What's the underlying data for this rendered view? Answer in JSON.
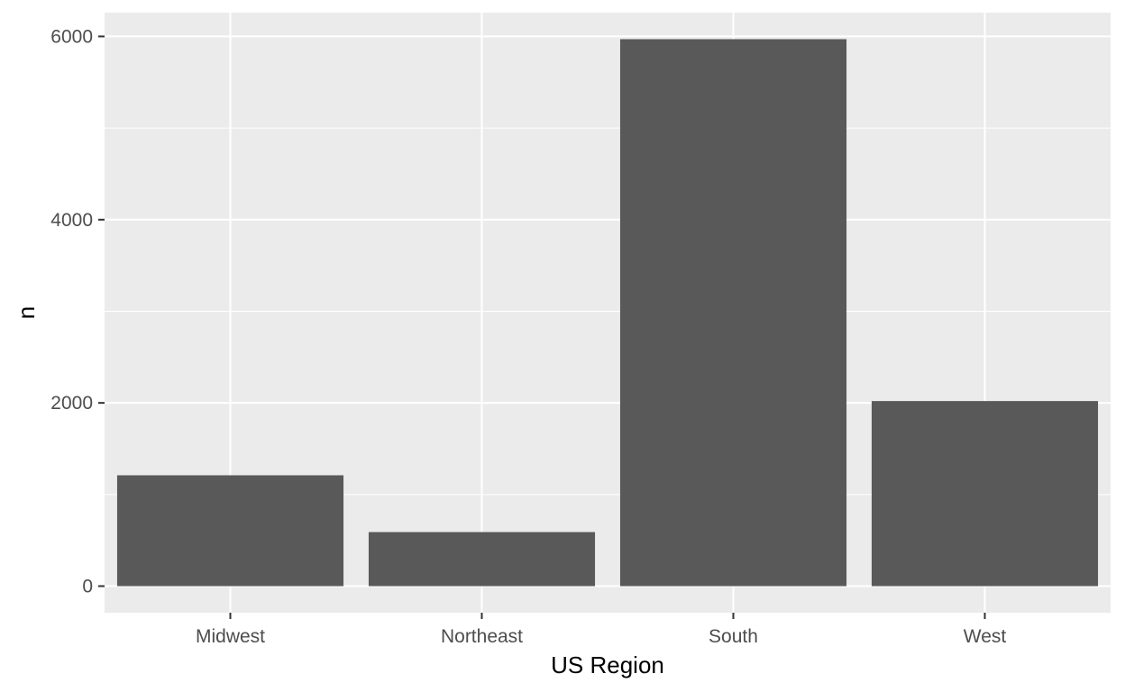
{
  "chart_data": {
    "type": "bar",
    "categories": [
      "Midwest",
      "Northeast",
      "South",
      "West"
    ],
    "values": [
      1210,
      590,
      5970,
      2020
    ],
    "xlabel": "US Region",
    "ylabel": "n",
    "ylim": [
      -290,
      6260
    ],
    "yticks": [
      0,
      2000,
      4000,
      6000
    ],
    "yticks_minor": [
      1000,
      3000,
      5000
    ],
    "grid": true,
    "legend": "none",
    "colors": {
      "panel_background": "#ebebeb",
      "grid_line": "#ffffff",
      "bar_fill": "#595959",
      "tick_mark": "#333333",
      "tick_label": "#4d4d4d",
      "axis_title": "#000000"
    }
  }
}
